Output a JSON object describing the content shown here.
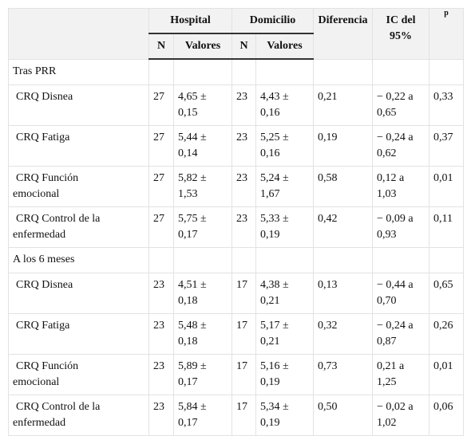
{
  "table": {
    "header": {
      "groups": [
        "Hospital",
        "Domicilio"
      ],
      "diferencia": "Diferencia",
      "ic": "IC del 95%",
      "p": "p",
      "sub": [
        "N",
        "Valores",
        "N",
        "Valores"
      ]
    },
    "sections": [
      {
        "title": "Tras PRR",
        "rows": [
          [
            "CRQ Disnea",
            "27",
            "4,65 ± 0,15",
            "23",
            "4,43 ± 0,16",
            "0,21",
            "− 0,22 a 0,65",
            "0,33"
          ],
          [
            "CRQ Fatiga",
            "27",
            "5,44 ± 0,14",
            "23",
            "5,25 ± 0,16",
            "0,19",
            "− 0,24 a 0,62",
            "0,37"
          ],
          [
            "CRQ Función emocional",
            "27",
            "5,82 ± 1,53",
            "23",
            "5,24 ± 1,67",
            "0,58",
            "0,12 a 1,03",
            "0,01"
          ],
          [
            "CRQ Control de la enfermedad",
            "27",
            "5,75 ± 0,17",
            "23",
            "5,33 ± 0,19",
            "0,42",
            "− 0,09 a 0,93",
            "0,11"
          ]
        ]
      },
      {
        "title": "A los 6 meses",
        "rows": [
          [
            "CRQ Disnea",
            "23",
            "4,51 ± 0,18",
            "17",
            "4,38 ± 0,21",
            "0,13",
            "− 0,44 a 0,70",
            "0,65"
          ],
          [
            "CRQ Fatiga",
            "23",
            "5,48 ± 0,18",
            "17",
            "5,17 ± 0,21",
            "0,32",
            "− 0,24 a 0,87",
            "0,26"
          ],
          [
            "CRQ Función emocional",
            "23",
            "5,89 ± 0,17",
            "17",
            "5,16 ± 0,19",
            "0,73",
            "0,21 a 1,25",
            "0,01"
          ],
          [
            "CRQ Control de la enfermedad",
            "23",
            "5,84 ± 0,17",
            "17",
            "5,34 ± 0,19",
            "0,50",
            "− 0,02 a 1,02",
            "0,06"
          ]
        ]
      }
    ]
  }
}
